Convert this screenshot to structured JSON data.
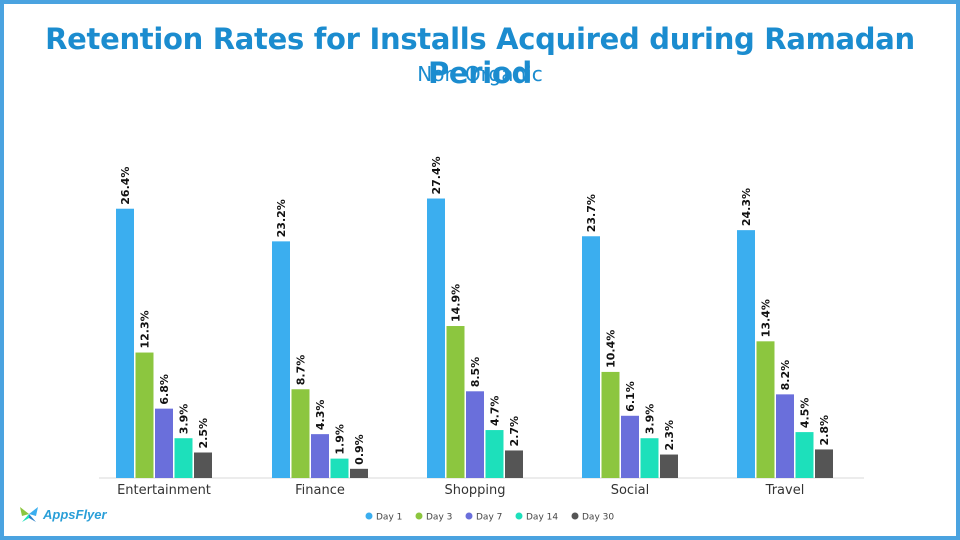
{
  "header": {
    "title": "Retention Rates for Installs Acquired during Ramadan Period",
    "subtitle": "Non-Organic"
  },
  "logo": {
    "text": "AppsFlyer"
  },
  "chart_data": {
    "type": "bar",
    "title": "Retention Rates for Installs Acquired during Ramadan Period",
    "subtitle": "Non-Organic",
    "categories": [
      "Entertainment",
      "Finance",
      "Shopping",
      "Social",
      "Travel"
    ],
    "series": [
      {
        "name": "Day 1",
        "color": "#3baeef",
        "values": [
          26.4,
          23.2,
          27.4,
          23.7,
          24.3
        ],
        "labels": [
          "26.4%",
          "23.2%",
          "27.4%",
          "23.7%",
          "24.3%"
        ]
      },
      {
        "name": "Day 3",
        "color": "#8cc63f",
        "values": [
          12.3,
          8.7,
          14.9,
          10.4,
          13.4
        ],
        "labels": [
          "12.3%",
          "8.7%",
          "14.9%",
          "10.4%",
          "13.4%"
        ]
      },
      {
        "name": "Day 7",
        "color": "#6a6fdb",
        "values": [
          6.8,
          4.3,
          8.5,
          6.1,
          8.2
        ],
        "labels": [
          "6.8%",
          "4.3%",
          "8.5%",
          "6.1%",
          "8.2%"
        ]
      },
      {
        "name": "Day 14",
        "color": "#1de0bb",
        "values": [
          3.9,
          1.9,
          4.7,
          3.9,
          4.5
        ],
        "labels": [
          "3.9%",
          "1.9%",
          "4.7%",
          "3.9%",
          "4.5%"
        ]
      },
      {
        "name": "Day 30",
        "color": "#555555",
        "values": [
          2.5,
          0.9,
          2.7,
          2.3,
          2.8
        ],
        "labels": [
          "2.5%",
          "0.9%",
          "2.7%",
          "2.3%",
          "2.8%"
        ]
      }
    ],
    "ylim": [
      0,
      30
    ],
    "xlabel": "",
    "ylabel": "",
    "grid": false,
    "legend": "bottom-center"
  }
}
